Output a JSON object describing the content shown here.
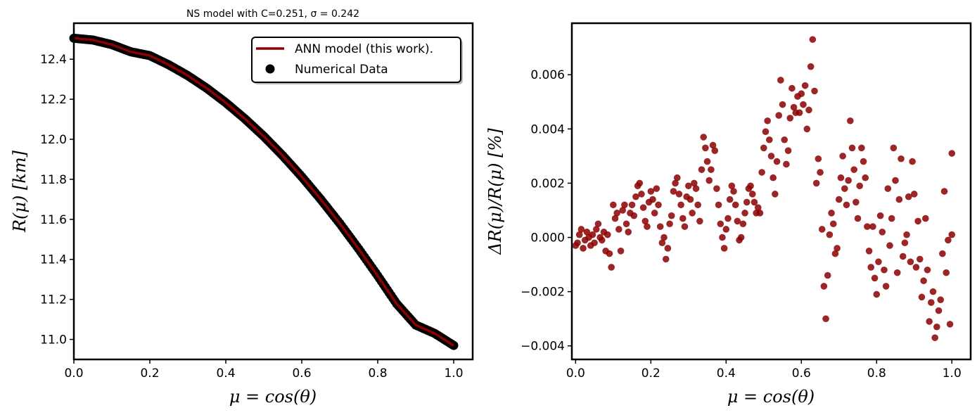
{
  "chart_data": [
    {
      "type": "line",
      "title": "NS model with C=0.251, σ = 0.242",
      "xlabel": "μ = cos(θ)",
      "ylabel": "R(μ) [km]",
      "xlim": [
        0.0,
        1.05
      ],
      "ylim": [
        10.9,
        12.58
      ],
      "xticks": [
        "0.0",
        "0.2",
        "0.4",
        "0.6",
        "0.8",
        "1.0"
      ],
      "yticks": [
        "11.0",
        "11.2",
        "11.4",
        "11.6",
        "11.8",
        "12.0",
        "12.2",
        "12.4"
      ],
      "legend_position": "top-right",
      "series": [
        {
          "name": "ANN model (this work).",
          "kind": "line",
          "color": "#8b0000",
          "x": [
            0.0,
            0.05,
            0.1,
            0.15,
            0.2,
            0.25,
            0.3,
            0.35,
            0.4,
            0.45,
            0.5,
            0.55,
            0.6,
            0.65,
            0.7,
            0.75,
            0.8,
            0.85,
            0.9,
            0.95,
            1.0
          ],
          "y": [
            12.505,
            12.496,
            12.473,
            12.437,
            12.418,
            12.372,
            12.318,
            12.255,
            12.183,
            12.103,
            12.015,
            11.918,
            11.813,
            11.7,
            11.58,
            11.452,
            11.318,
            11.178,
            11.072,
            11.03,
            10.97
          ]
        },
        {
          "name": "Numerical Data",
          "kind": "scatter",
          "color": "#000000"
        }
      ]
    },
    {
      "type": "scatter",
      "xlabel": "μ = cos(θ)",
      "ylabel": "ΔR(μ)/R(μ) [%]",
      "xlim": [
        -0.01,
        1.05
      ],
      "ylim": [
        -0.0045,
        0.0079
      ],
      "xticks": [
        "0.0",
        "0.2",
        "0.4",
        "0.6",
        "0.8",
        "1.0"
      ],
      "yticks": [
        "−0.004",
        "−0.002",
        "0.000",
        "0.002",
        "0.004",
        "0.006"
      ],
      "color": "#8b0000",
      "points": [
        [
          0.0,
          -0.0003
        ],
        [
          0.005,
          -0.0002
        ],
        [
          0.01,
          0.0001
        ],
        [
          0.015,
          0.0003
        ],
        [
          0.02,
          -0.0004
        ],
        [
          0.025,
          -0.0001
        ],
        [
          0.03,
          0.0002
        ],
        [
          0.035,
          0.0
        ],
        [
          0.04,
          -0.0003
        ],
        [
          0.045,
          0.0001
        ],
        [
          0.05,
          -0.0002
        ],
        [
          0.055,
          0.0003
        ],
        [
          0.06,
          0.0005
        ],
        [
          0.065,
          0.0
        ],
        [
          0.07,
          -0.0001
        ],
        [
          0.075,
          0.0002
        ],
        [
          0.08,
          -0.0005
        ],
        [
          0.085,
          0.0001
        ],
        [
          0.09,
          -0.0006
        ],
        [
          0.095,
          -0.0011
        ],
        [
          0.1,
          0.0012
        ],
        [
          0.105,
          0.0007
        ],
        [
          0.11,
          0.0009
        ],
        [
          0.115,
          0.0003
        ],
        [
          0.12,
          -0.0005
        ],
        [
          0.125,
          0.001
        ],
        [
          0.13,
          0.0012
        ],
        [
          0.135,
          0.0005
        ],
        [
          0.14,
          0.0002
        ],
        [
          0.145,
          0.0009
        ],
        [
          0.15,
          0.0012
        ],
        [
          0.155,
          0.0008
        ],
        [
          0.16,
          0.0015
        ],
        [
          0.165,
          0.0019
        ],
        [
          0.17,
          0.002
        ],
        [
          0.175,
          0.0016
        ],
        [
          0.18,
          0.0011
        ],
        [
          0.185,
          0.0006
        ],
        [
          0.19,
          0.0004
        ],
        [
          0.195,
          0.0013
        ],
        [
          0.2,
          0.0017
        ],
        [
          0.205,
          0.0014
        ],
        [
          0.21,
          0.0009
        ],
        [
          0.215,
          0.0018
        ],
        [
          0.22,
          0.0012
        ],
        [
          0.225,
          0.0004
        ],
        [
          0.23,
          -0.0002
        ],
        [
          0.235,
          0.0
        ],
        [
          0.24,
          -0.0008
        ],
        [
          0.245,
          -0.0004
        ],
        [
          0.25,
          0.0005
        ],
        [
          0.255,
          0.0008
        ],
        [
          0.26,
          0.0017
        ],
        [
          0.265,
          0.002
        ],
        [
          0.27,
          0.0022
        ],
        [
          0.275,
          0.0016
        ],
        [
          0.28,
          0.0012
        ],
        [
          0.285,
          0.0007
        ],
        [
          0.29,
          0.0004
        ],
        [
          0.295,
          0.0015
        ],
        [
          0.3,
          0.0019
        ],
        [
          0.305,
          0.0014
        ],
        [
          0.31,
          0.0009
        ],
        [
          0.315,
          0.002
        ],
        [
          0.32,
          0.0018
        ],
        [
          0.325,
          0.0012
        ],
        [
          0.33,
          0.0006
        ],
        [
          0.335,
          0.0025
        ],
        [
          0.34,
          0.0037
        ],
        [
          0.345,
          0.0033
        ],
        [
          0.35,
          0.0028
        ],
        [
          0.355,
          0.0021
        ],
        [
          0.36,
          0.0025
        ],
        [
          0.365,
          0.0034
        ],
        [
          0.37,
          0.0032
        ],
        [
          0.375,
          0.0018
        ],
        [
          0.38,
          0.0012
        ],
        [
          0.385,
          0.0005
        ],
        [
          0.39,
          0.0
        ],
        [
          0.395,
          -0.0004
        ],
        [
          0.4,
          0.0003
        ],
        [
          0.405,
          0.0007
        ],
        [
          0.41,
          0.0014
        ],
        [
          0.415,
          0.0019
        ],
        [
          0.42,
          0.0017
        ],
        [
          0.425,
          0.0012
        ],
        [
          0.43,
          0.0006
        ],
        [
          0.435,
          -0.0001
        ],
        [
          0.44,
          0.0
        ],
        [
          0.445,
          0.0005
        ],
        [
          0.45,
          0.0009
        ],
        [
          0.455,
          0.0013
        ],
        [
          0.46,
          0.0018
        ],
        [
          0.465,
          0.0019
        ],
        [
          0.47,
          0.0016
        ],
        [
          0.475,
          0.0013
        ],
        [
          0.48,
          0.0009
        ],
        [
          0.485,
          0.0011
        ],
        [
          0.49,
          0.0009
        ],
        [
          0.495,
          0.0024
        ],
        [
          0.5,
          0.0033
        ],
        [
          0.505,
          0.0039
        ],
        [
          0.51,
          0.0043
        ],
        [
          0.515,
          0.0036
        ],
        [
          0.52,
          0.003
        ],
        [
          0.525,
          0.0022
        ],
        [
          0.53,
          0.0016
        ],
        [
          0.535,
          0.0028
        ],
        [
          0.54,
          0.0045
        ],
        [
          0.545,
          0.0058
        ],
        [
          0.55,
          0.0049
        ],
        [
          0.555,
          0.0036
        ],
        [
          0.56,
          0.0027
        ],
        [
          0.565,
          0.0032
        ],
        [
          0.57,
          0.0044
        ],
        [
          0.575,
          0.0055
        ],
        [
          0.58,
          0.0048
        ],
        [
          0.585,
          0.0046
        ],
        [
          0.59,
          0.0052
        ],
        [
          0.595,
          0.0046
        ],
        [
          0.6,
          0.0053
        ],
        [
          0.605,
          0.0049
        ],
        [
          0.61,
          0.0056
        ],
        [
          0.615,
          0.004
        ],
        [
          0.62,
          0.0047
        ],
        [
          0.625,
          0.0063
        ],
        [
          0.63,
          0.0073
        ],
        [
          0.635,
          0.0054
        ],
        [
          0.64,
          0.002
        ],
        [
          0.645,
          0.0029
        ],
        [
          0.65,
          0.0024
        ],
        [
          0.655,
          0.0003
        ],
        [
          0.66,
          -0.0018
        ],
        [
          0.665,
          -0.003
        ],
        [
          0.67,
          -0.0014
        ],
        [
          0.675,
          0.0001
        ],
        [
          0.68,
          0.0009
        ],
        [
          0.685,
          0.0005
        ],
        [
          0.69,
          -0.0006
        ],
        [
          0.695,
          -0.0004
        ],
        [
          0.7,
          0.0014
        ],
        [
          0.705,
          0.0022
        ],
        [
          0.71,
          0.003
        ],
        [
          0.715,
          0.0018
        ],
        [
          0.72,
          0.0012
        ],
        [
          0.725,
          0.0021
        ],
        [
          0.73,
          0.0043
        ],
        [
          0.735,
          0.0033
        ],
        [
          0.74,
          0.0025
        ],
        [
          0.745,
          0.0013
        ],
        [
          0.75,
          0.0007
        ],
        [
          0.755,
          0.0019
        ],
        [
          0.76,
          0.0033
        ],
        [
          0.765,
          0.0028
        ],
        [
          0.77,
          0.0022
        ],
        [
          0.775,
          0.0004
        ],
        [
          0.78,
          -0.0005
        ],
        [
          0.785,
          -0.0011
        ],
        [
          0.79,
          0.0004
        ],
        [
          0.795,
          -0.0015
        ],
        [
          0.8,
          -0.0021
        ],
        [
          0.805,
          -0.0009
        ],
        [
          0.81,
          0.0008
        ],
        [
          0.815,
          0.0002
        ],
        [
          0.82,
          -0.0012
        ],
        [
          0.825,
          -0.0018
        ],
        [
          0.83,
          0.0018
        ],
        [
          0.835,
          -0.0003
        ],
        [
          0.84,
          0.0007
        ],
        [
          0.845,
          0.0033
        ],
        [
          0.85,
          0.0021
        ],
        [
          0.855,
          -0.0013
        ],
        [
          0.86,
          0.0014
        ],
        [
          0.865,
          0.0029
        ],
        [
          0.87,
          -0.0007
        ],
        [
          0.875,
          -0.0002
        ],
        [
          0.88,
          0.0001
        ],
        [
          0.885,
          0.0015
        ],
        [
          0.89,
          -0.0009
        ],
        [
          0.895,
          0.0028
        ],
        [
          0.9,
          0.0016
        ],
        [
          0.905,
          -0.0011
        ],
        [
          0.91,
          0.0006
        ],
        [
          0.915,
          -0.0008
        ],
        [
          0.92,
          -0.0022
        ],
        [
          0.925,
          -0.0016
        ],
        [
          0.93,
          0.0007
        ],
        [
          0.935,
          -0.0012
        ],
        [
          0.94,
          -0.0031
        ],
        [
          0.945,
          -0.0024
        ],
        [
          0.95,
          -0.002
        ],
        [
          0.955,
          -0.0037
        ],
        [
          0.96,
          -0.0033
        ],
        [
          0.965,
          -0.0027
        ],
        [
          0.97,
          -0.0023
        ],
        [
          0.975,
          -0.0006
        ],
        [
          0.98,
          0.0017
        ],
        [
          0.985,
          -0.0013
        ],
        [
          0.99,
          -0.0001
        ],
        [
          0.995,
          -0.0032
        ],
        [
          1.0,
          0.0001
        ],
        [
          1.0,
          0.0031
        ]
      ]
    }
  ]
}
